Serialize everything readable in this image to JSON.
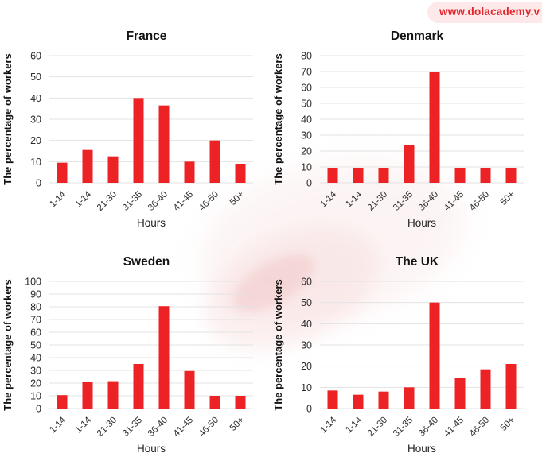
{
  "watermark": {
    "text": "www.dolacademy.v",
    "text_color": "#e3242b",
    "bg_color": "#fde9e9"
  },
  "colors": {
    "bar": "#ed2224",
    "grid": "#e3e3e3",
    "title": "#141414",
    "tick": "#2b2b2b"
  },
  "chart_data": [
    {
      "type": "bar",
      "title": "France",
      "categories": [
        "1-14",
        "1-14",
        "21-30",
        "31-35",
        "36-40",
        "41-45",
        "46-50",
        "50+"
      ],
      "values": [
        9.5,
        15.5,
        12.5,
        40,
        36.5,
        10,
        20,
        9
      ],
      "xlabel": "Hours",
      "ylabel": "The percentage of workers",
      "ylim": [
        0,
        60
      ],
      "ytick_step": 10,
      "grid": true,
      "legend": false
    },
    {
      "type": "bar",
      "title": "Denmark",
      "categories": [
        "1-14",
        "1-14",
        "21-30",
        "31-35",
        "36-40",
        "41-45",
        "46-50",
        "50+"
      ],
      "values": [
        9.5,
        9.5,
        9.5,
        23.5,
        70,
        9.5,
        9.5,
        9.5
      ],
      "xlabel": "Hours",
      "ylabel": "The percentage of workers",
      "ylim": [
        0,
        80
      ],
      "ytick_step": 10,
      "grid": true,
      "legend": false
    },
    {
      "type": "bar",
      "title": "Sweden",
      "categories": [
        "1-14",
        "1-14",
        "21-30",
        "31-35",
        "36-40",
        "41-45",
        "46-50",
        "50+"
      ],
      "values": [
        10.5,
        21,
        21.5,
        35,
        80.5,
        29.5,
        10,
        10
      ],
      "xlabel": "Hours",
      "ylabel": "The percentage of workers",
      "ylim": [
        0,
        100
      ],
      "ytick_step": 10,
      "grid": true,
      "legend": false
    },
    {
      "type": "bar",
      "title": "The UK",
      "categories": [
        "1-14",
        "1-14",
        "21-30",
        "31-35",
        "36-40",
        "41-45",
        "46-50",
        "50+"
      ],
      "values": [
        8.5,
        6.5,
        8,
        10,
        50,
        14.5,
        18.5,
        21
      ],
      "xlabel": "Hours",
      "ylabel": "The percentage of workers",
      "ylim": [
        0,
        60
      ],
      "ytick_step": 10,
      "grid": true,
      "legend": false
    }
  ]
}
